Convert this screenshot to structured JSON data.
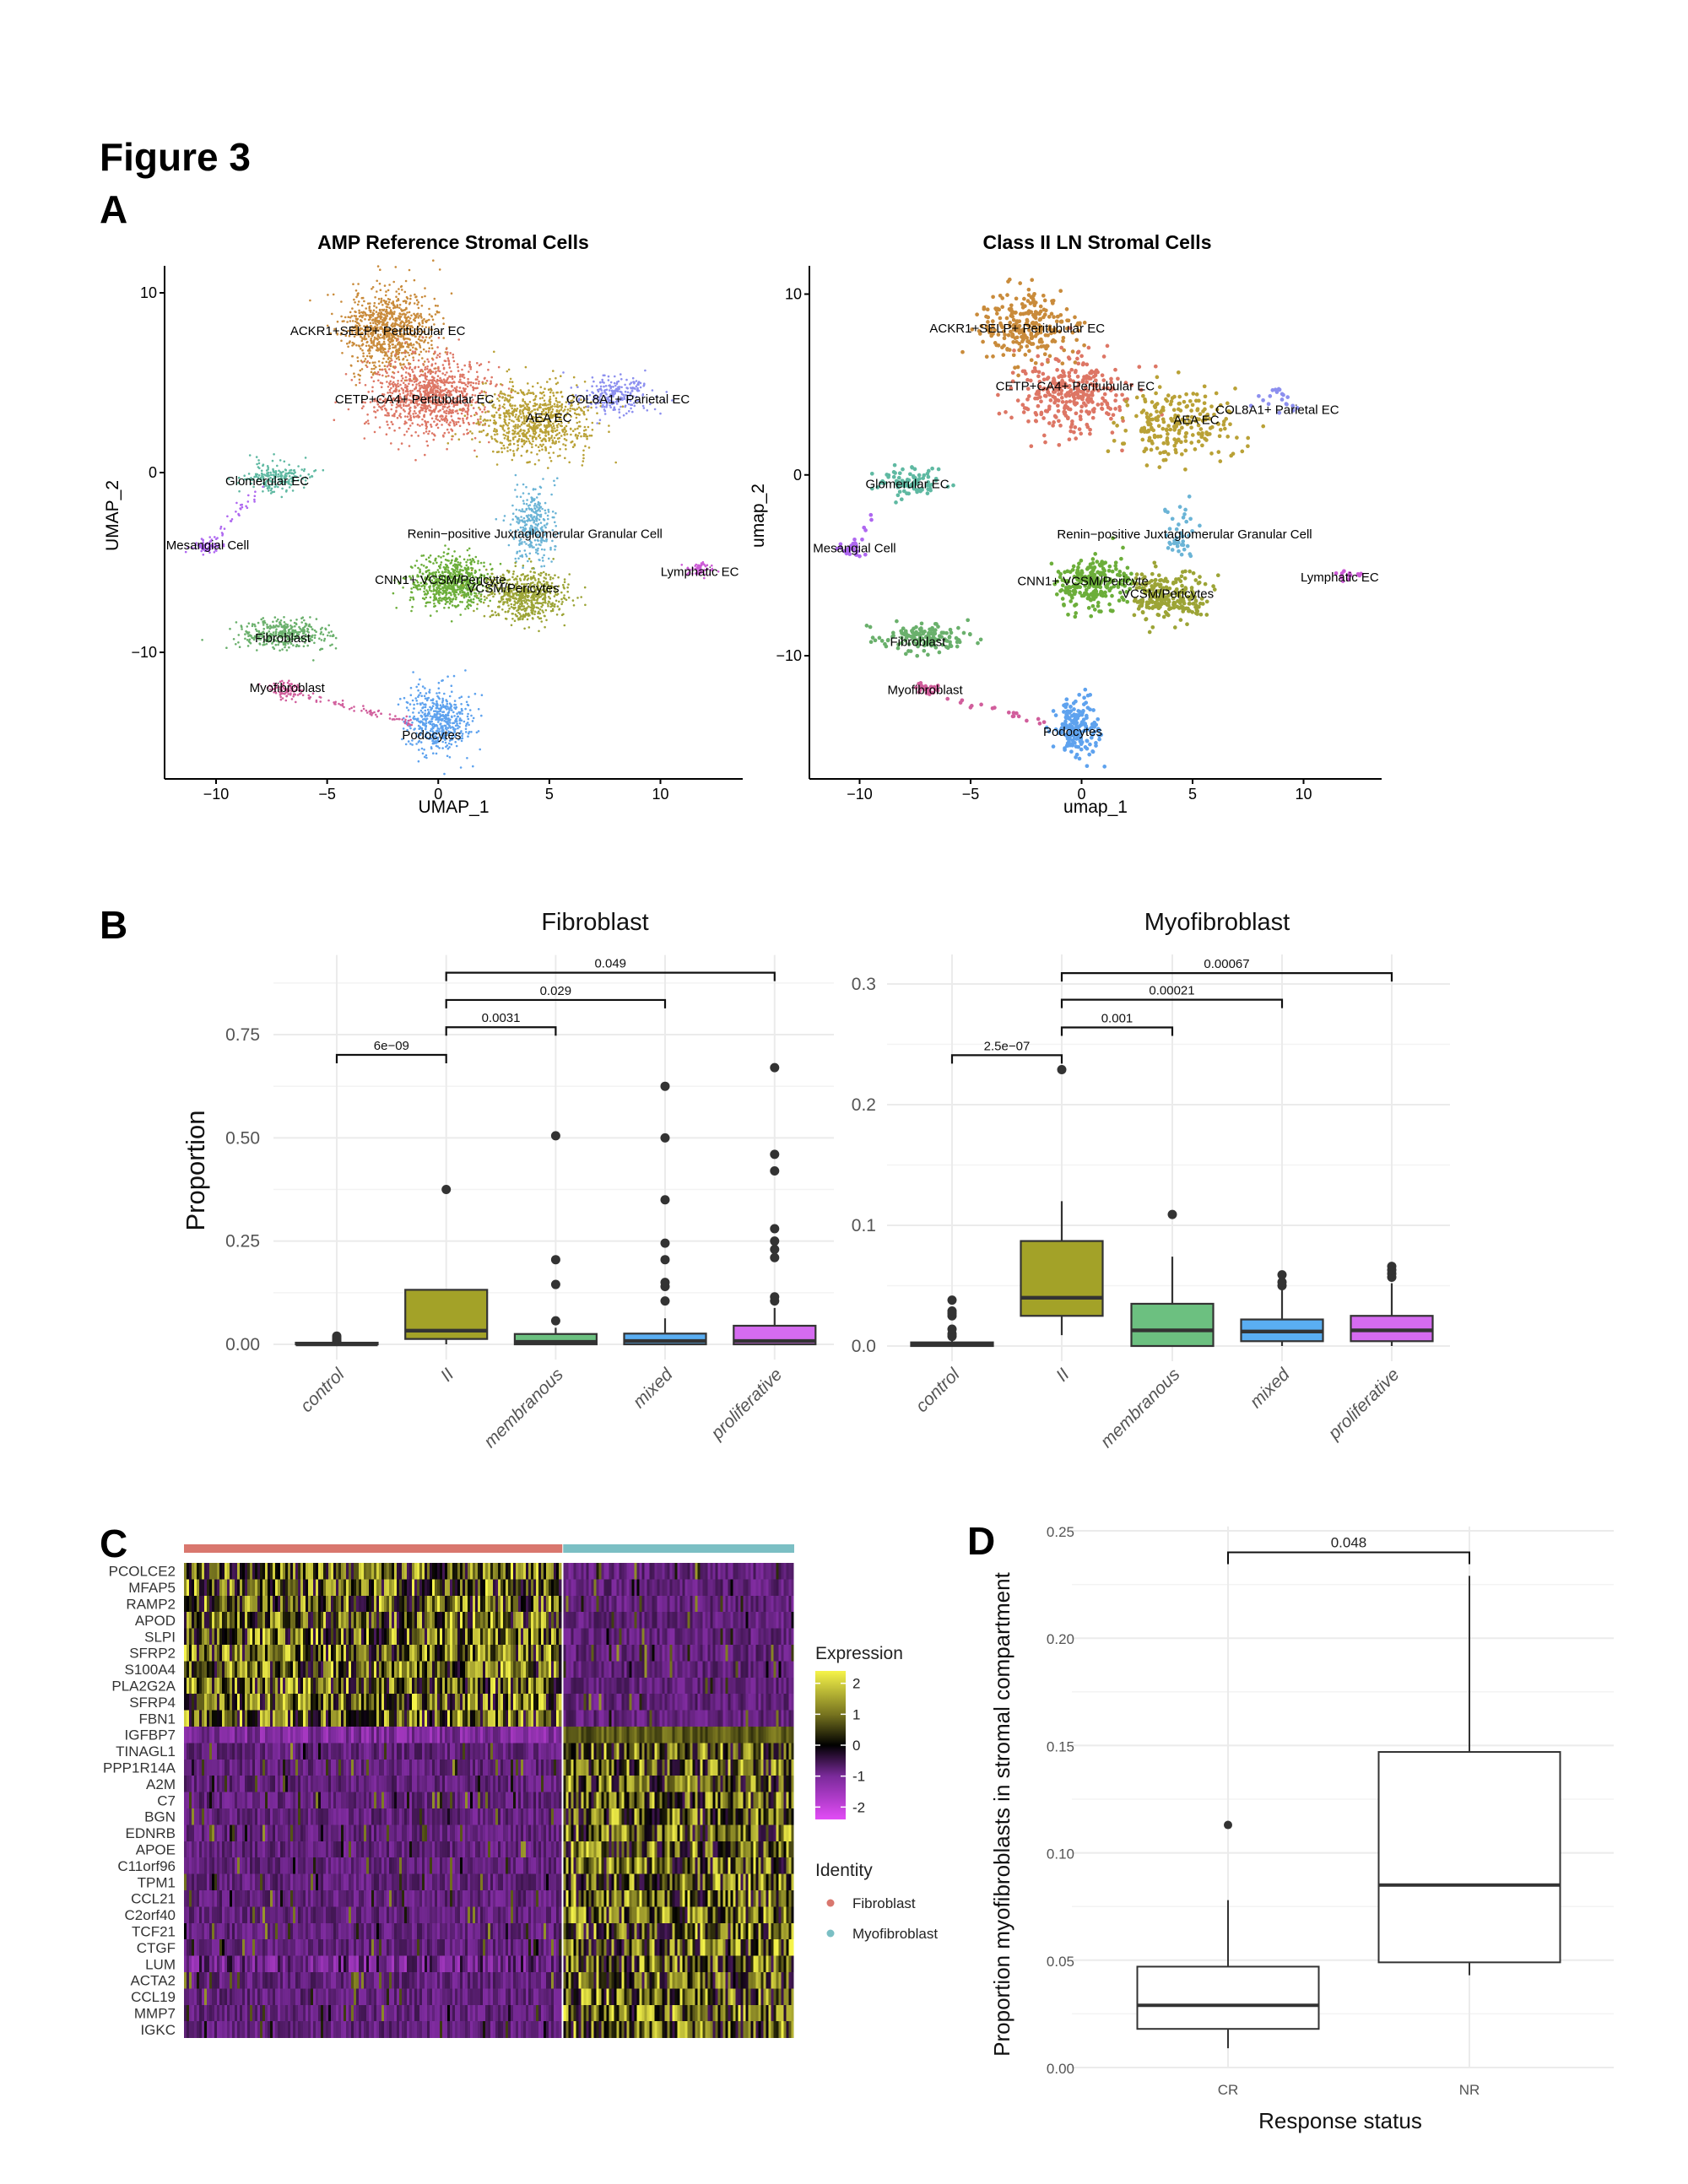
{
  "figure": {
    "title": "Figure 3",
    "panel_labels": {
      "A": "A",
      "B": "B",
      "C": "C",
      "D": "D"
    }
  },
  "chart_data": [
    {
      "type": "scatter",
      "panel": "A",
      "title": "AMP Reference Stromal Cells",
      "xlabel": "UMAP_1",
      "ylabel": "UMAP_2",
      "xlim": [
        -12.2,
        13.8
      ],
      "ylim": [
        -17.0,
        11.5
      ],
      "xticks": [
        -10,
        -5,
        0,
        5,
        10
      ],
      "xtick_labels": [
        "−10",
        "−5",
        "0",
        "5",
        "10"
      ],
      "yticks": [
        10,
        0,
        -10
      ],
      "ytick_labels": [
        "10",
        "0",
        "−10"
      ],
      "point_scale": 1.0,
      "clusters": [
        {
          "name": "ACKR1+SELP+ Peritubular EC",
          "color": "#C98B3B",
          "center": [
            -2.3,
            8.0
          ],
          "sd": [
            1.0,
            1.1
          ],
          "n": 900,
          "label_at": [
            -2.72,
            7.89
          ]
        },
        {
          "name": "CETP+CA4+ Peritubular EC",
          "color": "#DD7665",
          "center": [
            -0.4,
            4.3
          ],
          "sd": [
            1.3,
            1.1
          ],
          "n": 1000,
          "label_at": [
            -1.07,
            4.09
          ]
        },
        {
          "name": "AEA EC",
          "color": "#B9A136",
          "center": [
            4.3,
            2.9
          ],
          "sd": [
            1.3,
            1.0
          ],
          "n": 800,
          "label_at": [
            4.98,
            3.05
          ]
        },
        {
          "name": "COL8A1+ Parietal EC",
          "color": "#8C8FEF",
          "center": [
            8.0,
            4.3
          ],
          "sd": [
            0.8,
            0.5
          ],
          "n": 250,
          "label_at": [
            8.54,
            4.09
          ]
        },
        {
          "name": "Glomerular EC",
          "color": "#5FB9A2",
          "center": [
            -7.3,
            -0.3
          ],
          "sd": [
            0.7,
            0.4
          ],
          "n": 200,
          "label_at": [
            -7.7,
            -0.46
          ]
        },
        {
          "name": "Mesangial Cell",
          "color": "#AE67F0",
          "center": [
            -10.4,
            -4.1
          ],
          "sd": [
            0.3,
            0.2
          ],
          "n": 80,
          "label_at": [
            -10.38,
            -4.04
          ]
        },
        {
          "name": "Renin−positive Juxtaglomerular Granular Cell",
          "color": "#6BB4D6",
          "center": [
            4.3,
            -2.8
          ],
          "sd": [
            0.5,
            1.0
          ],
          "n": 300,
          "label_at": [
            4.35,
            -3.4
          ]
        },
        {
          "name": "CNN1+ VCSM/Pericyte",
          "color": "#6CAE3A",
          "center": [
            0.6,
            -6.1
          ],
          "sd": [
            0.9,
            0.7
          ],
          "n": 700,
          "label_at": [
            0.1,
            -5.96
          ]
        },
        {
          "name": "VCSM/Pericytes",
          "color": "#9CA436",
          "center": [
            4.0,
            -6.8
          ],
          "sd": [
            0.9,
            0.7
          ],
          "n": 600,
          "label_at": [
            3.37,
            -6.43
          ]
        },
        {
          "name": "Lymphatic EC",
          "color": "#CC5BD6",
          "center": [
            11.8,
            -5.4
          ],
          "sd": [
            0.3,
            0.2
          ],
          "n": 60,
          "label_at": [
            11.77,
            -5.51
          ]
        },
        {
          "name": "Fibroblast",
          "color": "#6AB06C",
          "center": [
            -6.8,
            -9.0
          ],
          "sd": [
            1.0,
            0.4
          ],
          "n": 350,
          "label_at": [
            -7.0,
            -9.2
          ]
        },
        {
          "name": "Myofibroblast",
          "color": "#D15E9C",
          "center": [
            -6.9,
            -12.1
          ],
          "sd": [
            0.35,
            0.25
          ],
          "n": 80,
          "label_at": [
            -6.8,
            -11.97
          ]
        },
        {
          "name": "Podocytes",
          "color": "#5EA2EE",
          "center": [
            0.0,
            -13.8
          ],
          "sd": [
            0.7,
            0.9
          ],
          "n": 500,
          "label_at": [
            -0.3,
            -14.6
          ]
        }
      ],
      "trails": [
        {
          "color": "#AE67F0",
          "from": [
            -10.2,
            -3.9
          ],
          "to": [
            -8.0,
            -0.8
          ],
          "n": 30
        },
        {
          "color": "#D15E9C",
          "from": [
            -6.5,
            -12.2
          ],
          "to": [
            -1.2,
            -13.9
          ],
          "n": 70
        }
      ]
    },
    {
      "type": "scatter",
      "panel": "A",
      "title": "Class II LN Stromal Cells",
      "xlabel": "umap_1",
      "ylabel": "umap_2",
      "xlim": [
        -12.2,
        13.6
      ],
      "ylim": [
        -17.0,
        11.5
      ],
      "xticks": [
        -10,
        -5,
        0,
        5,
        10
      ],
      "xtick_labels": [
        "−10",
        "−5",
        "0",
        "5",
        "10"
      ],
      "yticks": [
        10,
        0,
        -10
      ],
      "ytick_labels": [
        "10",
        "0",
        "−10"
      ],
      "point_scale": 1.8,
      "clusters": [
        {
          "name": "ACKR1+SELP+ Peritubular EC",
          "color": "#C98B3B",
          "center": [
            -2.5,
            8.3
          ],
          "sd": [
            1.0,
            1.0
          ],
          "n": 260,
          "label_at": [
            -2.9,
            8.11
          ]
        },
        {
          "name": "CETP+CA4+ Peritubular EC",
          "color": "#DD7665",
          "center": [
            -0.6,
            4.5
          ],
          "sd": [
            1.3,
            1.1
          ],
          "n": 320,
          "label_at": [
            -0.29,
            4.91
          ]
        },
        {
          "name": "AEA EC",
          "color": "#B9A136",
          "center": [
            4.2,
            2.8
          ],
          "sd": [
            1.3,
            1.0
          ],
          "n": 230,
          "label_at": [
            5.17,
            3.04
          ]
        },
        {
          "name": "COL8A1+ Parietal EC",
          "color": "#8C8FEF",
          "center": [
            8.6,
            4.2
          ],
          "sd": [
            0.6,
            0.5
          ],
          "n": 20,
          "label_at": [
            8.82,
            3.6
          ]
        },
        {
          "name": "Glomerular EC",
          "color": "#5FB9A2",
          "center": [
            -7.6,
            -0.4
          ],
          "sd": [
            0.7,
            0.4
          ],
          "n": 90,
          "label_at": [
            -7.85,
            -0.5
          ]
        },
        {
          "name": "Mesangial Cell",
          "color": "#AE67F0",
          "center": [
            -10.4,
            -4.1
          ],
          "sd": [
            0.3,
            0.25
          ],
          "n": 25,
          "label_at": [
            -10.23,
            -4.04
          ]
        },
        {
          "name": "Renin−positive Juxtaglomerular Granular Cell",
          "color": "#6BB4D6",
          "center": [
            4.5,
            -3.0
          ],
          "sd": [
            0.4,
            0.8
          ],
          "n": 40,
          "label_at": [
            4.64,
            -3.27
          ]
        },
        {
          "name": "CNN1+ VCSM/Pericyte",
          "color": "#6CAE3A",
          "center": [
            0.6,
            -6.0
          ],
          "sd": [
            0.9,
            0.7
          ],
          "n": 260,
          "label_at": [
            0.06,
            -5.86
          ]
        },
        {
          "name": "VCSM/Pericytes",
          "color": "#9CA436",
          "center": [
            3.9,
            -6.8
          ],
          "sd": [
            0.9,
            0.7
          ],
          "n": 230,
          "label_at": [
            3.88,
            -6.57
          ]
        },
        {
          "name": "Lymphatic EC",
          "color": "#CC5BD6",
          "center": [
            11.8,
            -5.6
          ],
          "sd": [
            0.3,
            0.2
          ],
          "n": 12,
          "label_at": [
            11.63,
            -5.66
          ]
        },
        {
          "name": "Fibroblast",
          "color": "#6AB06C",
          "center": [
            -7.2,
            -9.0
          ],
          "sd": [
            1.0,
            0.4
          ],
          "n": 150,
          "label_at": [
            -7.38,
            -9.23
          ]
        },
        {
          "name": "Myofibroblast",
          "color": "#D15E9C",
          "center": [
            -7.0,
            -11.8
          ],
          "sd": [
            0.3,
            0.2
          ],
          "n": 25,
          "label_at": [
            -7.05,
            -11.9
          ]
        },
        {
          "name": "Podocytes",
          "color": "#5EA2EE",
          "center": [
            -0.2,
            -14.0
          ],
          "sd": [
            0.5,
            0.8
          ],
          "n": 180,
          "label_at": [
            -0.4,
            -14.2
          ]
        }
      ],
      "trails": [
        {
          "color": "#AE67F0",
          "from": [
            -10.2,
            -3.9
          ],
          "to": [
            -9.4,
            -2.3
          ],
          "n": 6
        },
        {
          "color": "#D15E9C",
          "from": [
            -6.5,
            -12.2
          ],
          "to": [
            -1.5,
            -13.8
          ],
          "n": 18
        }
      ]
    },
    {
      "type": "box",
      "panel": "B",
      "title": "Fibroblast",
      "ylabel": "Proportion",
      "categories": [
        "control",
        "II",
        "membranous",
        "mixed",
        "proliferative"
      ],
      "colors": [
        "#E7776D",
        "#A3A228",
        "#6CC080",
        "#5AAEF2",
        "#D56BF0"
      ],
      "ylim": [
        -0.037,
        0.943
      ],
      "yticks": [
        0,
        0.25,
        0.5,
        0.75
      ],
      "ytick_labels": [
        "0.00",
        "0.25",
        "0.50",
        "0.75"
      ],
      "boxes": [
        {
          "whisker_low": 0,
          "q1": 0,
          "median": 0,
          "q3": 0.004,
          "whisker_high": 0.004,
          "outliers": [
            0.007,
            0.011,
            0.015,
            0.02
          ]
        },
        {
          "whisker_low": 0.0,
          "q1": 0.013,
          "median": 0.033,
          "q3": 0.132,
          "whisker_high": 0.132,
          "outliers": [
            0.375
          ]
        },
        {
          "whisker_low": 0,
          "q1": 0,
          "median": 0.006,
          "q3": 0.025,
          "whisker_high": 0.04,
          "outliers": [
            0.057,
            0.145,
            0.205,
            0.505
          ]
        },
        {
          "whisker_low": 0,
          "q1": 0,
          "median": 0.008,
          "q3": 0.026,
          "whisker_high": 0.063,
          "outliers": [
            0.105,
            0.14,
            0.15,
            0.205,
            0.245,
            0.35,
            0.5,
            0.625
          ]
        },
        {
          "whisker_low": 0,
          "q1": 0,
          "median": 0.008,
          "q3": 0.045,
          "whisker_high": 0.088,
          "outliers": [
            0.105,
            0.115,
            0.21,
            0.23,
            0.25,
            0.28,
            0.42,
            0.46,
            0.67
          ]
        }
      ],
      "comparisons": [
        {
          "groups": [
            "control",
            "II"
          ],
          "y": 0.701,
          "label": "6e−09"
        },
        {
          "groups": [
            "II",
            "membranous"
          ],
          "y": 0.768,
          "label": "0.0031"
        },
        {
          "groups": [
            "II",
            "mixed"
          ],
          "y": 0.834,
          "label": "0.029"
        },
        {
          "groups": [
            "II",
            "proliferative"
          ],
          "y": 0.9,
          "label": "0.049"
        }
      ]
    },
    {
      "type": "box",
      "panel": "B",
      "title": "Myofibroblast",
      "ylabel": "",
      "categories": [
        "control",
        "II",
        "membranous",
        "mixed",
        "proliferative"
      ],
      "colors": [
        "#E7776D",
        "#A3A228",
        "#6CC080",
        "#5AAEF2",
        "#D56BF0"
      ],
      "ylim": [
        -0.0126,
        0.3245
      ],
      "yticks": [
        0,
        0.1,
        0.2,
        0.3
      ],
      "ytick_labels": [
        "0.0",
        "0.1",
        "0.2",
        "0.3"
      ],
      "boxes": [
        {
          "whisker_low": 0,
          "q1": 0,
          "median": 0.001,
          "q3": 0.003,
          "whisker_high": 0.006,
          "outliers": [
            0.008,
            0.01,
            0.014,
            0.025,
            0.027,
            0.029,
            0.038
          ]
        },
        {
          "whisker_low": 0.009,
          "q1": 0.025,
          "median": 0.04,
          "q3": 0.087,
          "whisker_high": 0.12,
          "outliers": [
            0.229
          ]
        },
        {
          "whisker_low": 0,
          "q1": 0,
          "median": 0.013,
          "q3": 0.035,
          "whisker_high": 0.074,
          "outliers": [
            0.109
          ]
        },
        {
          "whisker_low": 0,
          "q1": 0.004,
          "median": 0.012,
          "q3": 0.022,
          "whisker_high": 0.047,
          "outliers": [
            0.05,
            0.053,
            0.059
          ]
        },
        {
          "whisker_low": 0,
          "q1": 0.004,
          "median": 0.013,
          "q3": 0.025,
          "whisker_high": 0.052,
          "outliers": [
            0.057,
            0.06,
            0.063,
            0.066
          ]
        }
      ],
      "comparisons": [
        {
          "groups": [
            "control",
            "II"
          ],
          "y": 0.241,
          "label": "2.5e−07"
        },
        {
          "groups": [
            "II",
            "membranous"
          ],
          "y": 0.264,
          "label": "0.001"
        },
        {
          "groups": [
            "II",
            "mixed"
          ],
          "y": 0.287,
          "label": "0.00021"
        },
        {
          "groups": [
            "II",
            "proliferative"
          ],
          "y": 0.309,
          "label": "0.00067"
        }
      ]
    },
    {
      "type": "heatmap",
      "panel": "C",
      "genes": [
        "PCOLCE2",
        "MFAP5",
        "RAMP2",
        "APOD",
        "SLPI",
        "SFRP2",
        "S100A4",
        "PLA2G2A",
        "SFRP4",
        "FBN1",
        "IGFBP7",
        "TINAGL1",
        "PPP1R14A",
        "A2M",
        "C7",
        "BGN",
        "EDNRB",
        "APOE",
        "C11orf96",
        "TPM1",
        "CCL21",
        "C2orf40",
        "TCF21",
        "CTGF",
        "LUM",
        "ACTA2",
        "CCL19",
        "MMP7",
        "IGKC"
      ],
      "high_in": [
        "Fibroblast",
        "Fibroblast",
        "Fibroblast",
        "Fibroblast",
        "Fibroblast",
        "Fibroblast",
        "Fibroblast",
        "Fibroblast",
        "Fibroblast",
        "Fibroblast",
        "Myofibroblast",
        "Myofibroblast",
        "Myofibroblast",
        "Myofibroblast",
        "Myofibroblast",
        "Myofibroblast",
        "Myofibroblast",
        "Myofibroblast",
        "Myofibroblast",
        "Myofibroblast",
        "Myofibroblast",
        "Myofibroblast",
        "Myofibroblast",
        "Myofibroblast",
        "Myofibroblast",
        "Myofibroblast",
        "Myofibroblast",
        "Myofibroblast",
        "Myofibroblast"
      ],
      "groups": [
        {
          "name": "Fibroblast",
          "color": "#D9776E",
          "cell_fraction": 0.62
        },
        {
          "name": "Myofibroblast",
          "color": "#7BBFC4",
          "cell_fraction": 0.38
        }
      ],
      "colorbar": {
        "title": "Expression",
        "range": [
          -2.4,
          2.4
        ],
        "ticks": [
          2,
          1,
          0,
          -1,
          -2
        ],
        "tick_labels": [
          "2",
          "1",
          "0",
          "-1",
          "-2"
        ],
        "stops": [
          {
            "value": -2.4,
            "color": "#E24CF6"
          },
          {
            "value": -1,
            "color": "#7A2A9A"
          },
          {
            "value": 0,
            "color": "#000000"
          },
          {
            "value": 1,
            "color": "#77741F"
          },
          {
            "value": 2.4,
            "color": "#F6F44A"
          }
        ]
      },
      "legend_title": "Identity"
    },
    {
      "type": "box",
      "panel": "D",
      "categories": [
        "CR",
        "NR"
      ],
      "xlabel": "Response status",
      "ylabel": "Proportion myofibroblasts in stromal compartment",
      "ylim": [
        0,
        0.252
      ],
      "yticks": [
        0,
        0.05,
        0.1,
        0.15,
        0.2,
        0.25
      ],
      "ytick_labels": [
        "0.00",
        "0.05",
        "0.10",
        "0.15",
        "0.20",
        "0.25"
      ],
      "boxes": [
        {
          "whisker_low": 0.009,
          "q1": 0.018,
          "median": 0.029,
          "q3": 0.047,
          "whisker_high": 0.078,
          "outliers": [
            0.113
          ]
        },
        {
          "whisker_low": 0.043,
          "q1": 0.049,
          "median": 0.085,
          "q3": 0.147,
          "whisker_high": 0.229,
          "outliers": []
        }
      ],
      "comparisons": [
        {
          "groups": [
            "CR",
            "NR"
          ],
          "y": 0.24,
          "label": "0.048"
        }
      ]
    }
  ]
}
